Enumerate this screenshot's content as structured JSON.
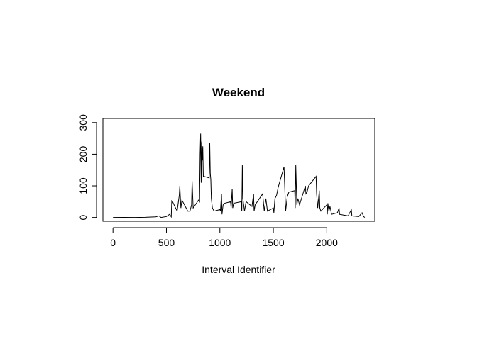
{
  "chart_data": {
    "type": "line",
    "title": "Weekend",
    "x_label": "Interval Identifier",
    "color": "#000000",
    "x": [
      0,
      100,
      200,
      300,
      400,
      430,
      450,
      500,
      530,
      545,
      550,
      600,
      620,
      625,
      635,
      645,
      700,
      720,
      735,
      740,
      750,
      800,
      810,
      815,
      820,
      825,
      830,
      835,
      840,
      845,
      850,
      900,
      905,
      910,
      915,
      920,
      930,
      945,
      1000,
      1005,
      1015,
      1020,
      1030,
      1045,
      1100,
      1105,
      1115,
      1120,
      1130,
      1200,
      1205,
      1210,
      1215,
      1230,
      1245,
      1300,
      1315,
      1320,
      1330,
      1400,
      1415,
      1430,
      1445,
      1500,
      1505,
      1515,
      1530,
      1545,
      1600,
      1615,
      1630,
      1645,
      1700,
      1705,
      1710,
      1720,
      1730,
      1745,
      1800,
      1805,
      1815,
      1830,
      1900,
      1905,
      1915,
      1930,
      1935,
      1945,
      2000,
      2005,
      2010,
      2020,
      2030,
      2045,
      2100,
      2115,
      2120,
      2200,
      2230,
      2235,
      2300,
      2330,
      2345,
      2355
    ],
    "values": [
      0,
      0.2,
      0,
      0.5,
      2,
      5,
      0,
      3,
      10,
      2,
      55,
      20,
      70,
      100,
      30,
      55,
      20,
      20,
      40,
      115,
      30,
      55,
      50,
      200,
      265,
      110,
      240,
      180,
      225,
      130,
      130,
      125,
      235,
      140,
      120,
      60,
      30,
      20,
      25,
      20,
      75,
      10,
      40,
      45,
      50,
      30,
      90,
      30,
      45,
      50,
      20,
      165,
      60,
      20,
      50,
      35,
      75,
      20,
      40,
      75,
      20,
      60,
      20,
      30,
      15,
      60,
      70,
      95,
      160,
      20,
      65,
      80,
      85,
      30,
      165,
      40,
      60,
      40,
      100,
      75,
      80,
      100,
      130,
      75,
      30,
      85,
      30,
      20,
      40,
      10,
      45,
      20,
      35,
      10,
      15,
      30,
      10,
      5,
      25,
      5,
      3,
      15,
      3,
      0
    ],
    "xlim": [
      -94.2,
      2449.2
    ],
    "ylim": [
      -12,
      313
    ],
    "xticks": [
      0,
      500,
      1000,
      1500,
      2000
    ],
    "yticks": [
      0,
      100,
      200,
      300
    ]
  }
}
